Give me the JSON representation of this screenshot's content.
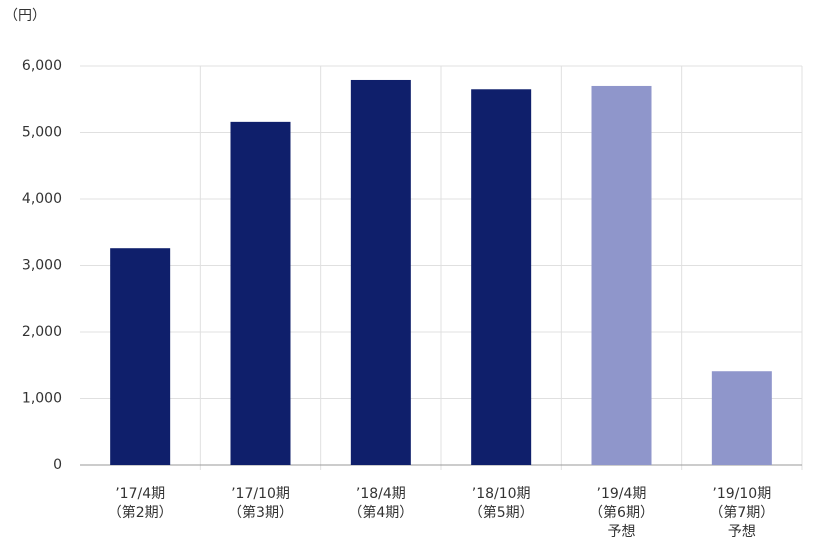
{
  "chart_data": {
    "type": "bar",
    "y_label": "（円）",
    "categories": [
      [
        "’17/4期",
        "（第2期）"
      ],
      [
        "’17/10期",
        "（第3期）"
      ],
      [
        "’18/4期",
        "（第4期）"
      ],
      [
        "’18/10期",
        "（第5期）"
      ],
      [
        "’19/4期",
        "（第6期）",
        "予想"
      ],
      [
        "’19/10期",
        "（第7期）",
        "予想"
      ]
    ],
    "values": [
      3260,
      5160,
      5790,
      5650,
      5700,
      1410
    ],
    "colors": [
      "#0f1f6b",
      "#0f1f6b",
      "#0f1f6b",
      "#0f1f6b",
      "#8f96cb",
      "#8f96cb"
    ],
    "ylim": [
      0,
      6000
    ],
    "yticks": [
      0,
      {
        "value": 1000,
        "label": "1,000"
      },
      {
        "value": 2000,
        "label": "2,000"
      },
      {
        "value": 3000,
        "label": "3,000"
      },
      {
        "value": 4000,
        "label": "4,000"
      },
      {
        "value": 5000,
        "label": "5,000"
      },
      {
        "value": 6000,
        "label": "6,000"
      }
    ],
    "grid": true
  }
}
